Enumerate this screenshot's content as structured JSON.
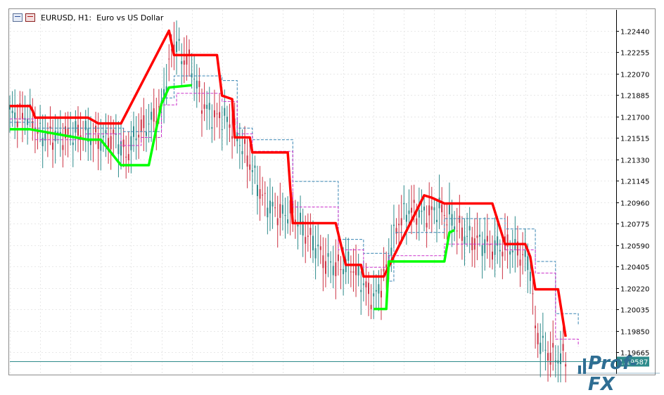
{
  "chart_title": {
    "symbol": "EURUSD, H1:",
    "description": "Euro vs US Dollar"
  },
  "price_tag": "1.19587",
  "logo_text": "Prof-FX",
  "colors": {
    "background": "#ffffff",
    "grid": "#e8e8e8",
    "candle": "#2e8b8b",
    "candle_alt": "#cc3344",
    "upper_band": "#ff0000",
    "lower_band": "#00ff00",
    "mid_dashed_cyan": "#3a86b4",
    "mid_dashed_magenta": "#cc33cc",
    "price_tag_bg": "#2e8b8b",
    "price_tag_text": "#ffffff"
  },
  "chart_data": {
    "type": "line",
    "title": "EURUSD, H1:  Euro vs US Dollar",
    "ylim": [
      1.1948,
      1.2262
    ],
    "y_ticks": [
      "1.22440",
      "1.22255",
      "1.22070",
      "1.21885",
      "1.21700",
      "1.21515",
      "1.21330",
      "1.21145",
      "1.20960",
      "1.20775",
      "1.20590",
      "1.20405",
      "1.20220",
      "1.20035",
      "1.19850",
      "1.19665"
    ],
    "grid": true,
    "x_bars": 240,
    "series": [
      {
        "id": "upper_band",
        "points": [
          [
            0,
            1.2179
          ],
          [
            8,
            1.2179
          ],
          [
            9,
            1.2175
          ],
          [
            10,
            1.2169
          ],
          [
            31,
            1.2169
          ],
          [
            35,
            1.2164
          ],
          [
            44,
            1.2164
          ],
          [
            63,
            1.2244
          ],
          [
            65,
            1.2223
          ],
          [
            82,
            1.2223
          ],
          [
            84,
            1.2188
          ],
          [
            88,
            1.2185
          ],
          [
            89,
            1.2152
          ],
          [
            95,
            1.2152
          ],
          [
            96,
            1.2139
          ],
          [
            110,
            1.2139
          ],
          [
            112,
            1.2078
          ],
          [
            129,
            1.2078
          ],
          [
            133,
            1.2042
          ],
          [
            139,
            1.2042
          ],
          [
            140,
            1.2032
          ],
          [
            148,
            1.2032
          ],
          [
            164,
            1.2102
          ],
          [
            167,
            1.21
          ],
          [
            172,
            1.2095
          ],
          [
            191,
            1.2095
          ],
          [
            196,
            1.206
          ],
          [
            204,
            1.206
          ],
          [
            206,
            1.2049
          ],
          [
            208,
            1.2021
          ],
          [
            217,
            1.2021
          ],
          [
            220,
            1.198
          ]
        ]
      },
      {
        "id": "lower_band",
        "points": [
          [
            0,
            1.2159
          ],
          [
            8,
            1.2159
          ],
          [
            31,
            1.215
          ],
          [
            36,
            1.215
          ],
          [
            44,
            1.2128
          ],
          [
            55,
            1.2128
          ],
          [
            60,
            1.2181
          ],
          [
            63,
            1.2195
          ],
          [
            72,
            1.2197
          ]
        ]
      },
      {
        "id": "lower_band_2",
        "points": [
          [
            144,
            1.2004
          ],
          [
            149,
            1.2004
          ],
          [
            150,
            1.2045
          ],
          [
            172,
            1.2045
          ],
          [
            174,
            1.207
          ],
          [
            176,
            1.2072
          ]
        ]
      }
    ]
  }
}
